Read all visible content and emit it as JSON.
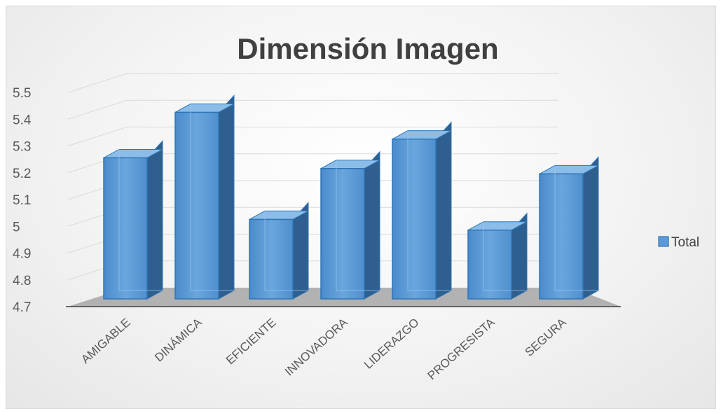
{
  "chart_data": {
    "type": "bar",
    "title": "Dimensión Imagen",
    "categories": [
      "AMIGABLE",
      "DINÁMICA",
      "EFICIENTE",
      "INNOVADORA",
      "LIDERAZGO",
      "PROGRESISTA",
      "SEGURA"
    ],
    "series": [
      {
        "name": "Total",
        "values": [
          5.24,
          5.41,
          5.01,
          5.2,
          5.31,
          4.97,
          5.18
        ]
      }
    ],
    "y_ticks": [
      "4.7",
      "4.8",
      "4.9",
      "5",
      "5.1",
      "5.2",
      "5.3",
      "5.4",
      "5.5"
    ],
    "ylim": [
      4.7,
      5.5
    ],
    "xlabel": "",
    "ylabel": "",
    "legend_position": "right",
    "grid": true,
    "style": "3d-column",
    "colors": {
      "bar_front": "#5b9bd5",
      "bar_side": "#2e5f8f",
      "bar_top": "#8cbde9",
      "bar_edge": "#2e75b6",
      "floor": "#a6a6a6",
      "grid": "#d9d9d9"
    }
  }
}
